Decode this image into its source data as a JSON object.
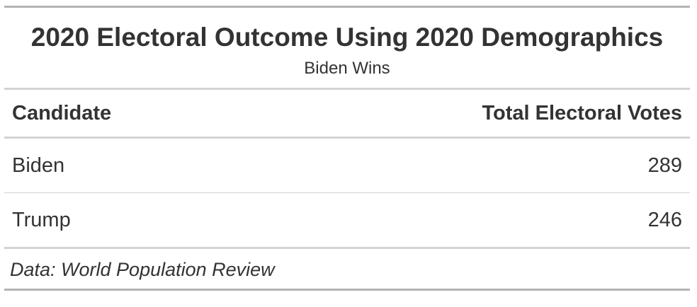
{
  "header": {
    "title": "2020 Electoral Outcome Using 2020 Demographics",
    "subtitle": "Biden Wins"
  },
  "table": {
    "columns": [
      "Candidate",
      "Total Electoral Votes"
    ],
    "rows": [
      {
        "candidate": "Biden",
        "votes": "289"
      },
      {
        "candidate": "Trump",
        "votes": "246"
      }
    ]
  },
  "footer": {
    "source": "Data: World Population Review"
  },
  "colors": {
    "text": "#333333",
    "rule_dark": "#b3b3b3",
    "rule_light": "#d3d3d3"
  }
}
